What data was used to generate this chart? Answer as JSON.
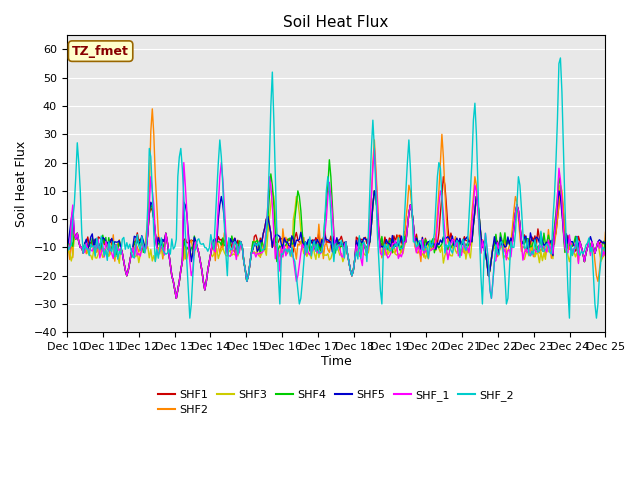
{
  "title": "Soil Heat Flux",
  "xlabel": "Time",
  "ylabel": "Soil Heat Flux",
  "ylim": [
    -40,
    65
  ],
  "yticks": [
    -40,
    -30,
    -20,
    -10,
    0,
    10,
    20,
    30,
    40,
    50,
    60
  ],
  "xtick_labels": [
    "Dec 10",
    "Dec 11",
    "Dec 12",
    "Dec 13",
    "Dec 14",
    "Dec 15",
    "Dec 16",
    "Dec 17",
    "Dec 18",
    "Dec 19",
    "Dec 20",
    "Dec 21",
    "Dec 22",
    "Dec 23",
    "Dec 24",
    "Dec 25"
  ],
  "annotation_text": "TZ_fmet",
  "annotation_bg": "#ffffcc",
  "annotation_fg": "#880000",
  "bg_color": "#e8e8e8",
  "series_colors": {
    "SHF1": "#cc0000",
    "SHF2": "#ff8800",
    "SHF3": "#cccc00",
    "SHF4": "#00cc00",
    "SHF5": "#0000cc",
    "SHF_1": "#ff00ff",
    "SHF_2": "#00cccc"
  },
  "legend_order": [
    "SHF1",
    "SHF2",
    "SHF3",
    "SHF4",
    "SHF5",
    "SHF_1",
    "SHF_2"
  ]
}
